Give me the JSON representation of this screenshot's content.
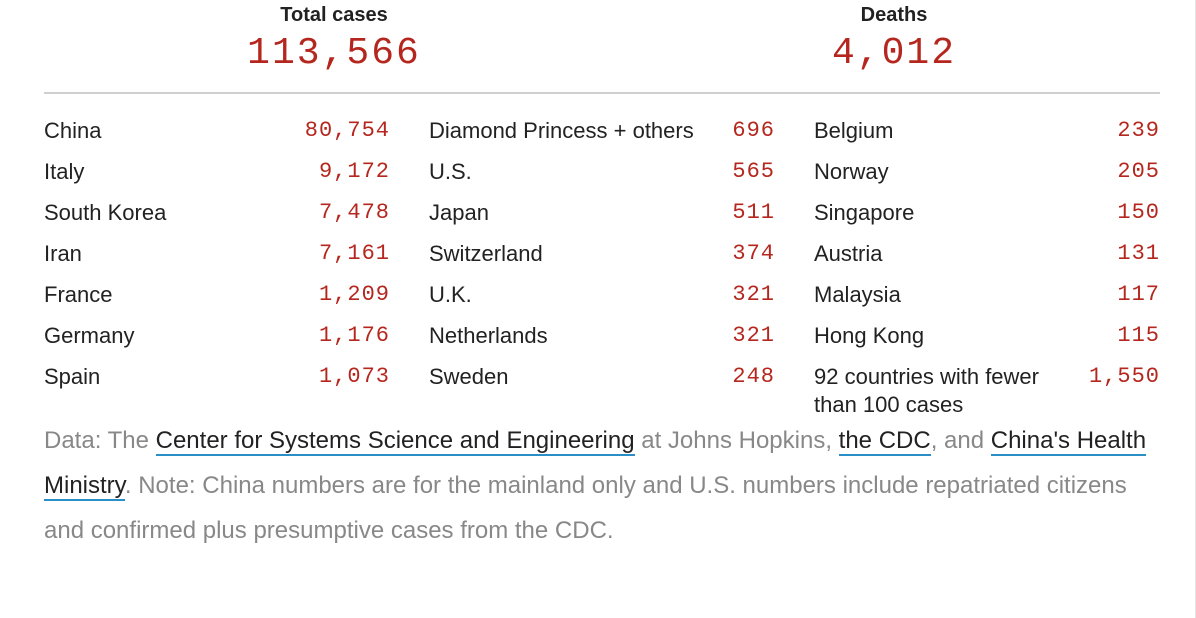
{
  "summary": {
    "cases_label": "Total cases",
    "cases_value": "113,566",
    "deaths_label": "Deaths",
    "deaths_value": "4,012"
  },
  "columns": [
    [
      {
        "name": "China",
        "value": "80,754"
      },
      {
        "name": "Italy",
        "value": "9,172"
      },
      {
        "name": "South Korea",
        "value": "7,478"
      },
      {
        "name": "Iran",
        "value": "7,161"
      },
      {
        "name": "France",
        "value": "1,209"
      },
      {
        "name": "Germany",
        "value": "1,176"
      },
      {
        "name": "Spain",
        "value": "1,073"
      }
    ],
    [
      {
        "name": "Diamond Princess + others",
        "value": "696"
      },
      {
        "name": "U.S.",
        "value": "565"
      },
      {
        "name": "Japan",
        "value": "511"
      },
      {
        "name": "Switzerland",
        "value": "374"
      },
      {
        "name": "U.K.",
        "value": "321"
      },
      {
        "name": "Netherlands",
        "value": "321"
      },
      {
        "name": "Sweden",
        "value": "248"
      }
    ],
    [
      {
        "name": "Belgium",
        "value": "239"
      },
      {
        "name": "Norway",
        "value": "205"
      },
      {
        "name": "Singapore",
        "value": "150"
      },
      {
        "name": "Austria",
        "value": "131"
      },
      {
        "name": "Malaysia",
        "value": "117"
      },
      {
        "name": "Hong Kong",
        "value": "115"
      },
      {
        "name": "92 countries with fewer than 100 cases",
        "value": "1,550"
      }
    ]
  ],
  "footnote": {
    "prefix": "Data: The ",
    "link1": "Center for Systems Science and Engineering",
    "mid1": " at Johns Hopkins, ",
    "link2": "the CDC",
    "mid2": ", and ",
    "link3": "China's Health Ministry",
    "suffix": ". Note: China numbers are for the mainland only and U.S. numbers include repatriated citizens and confirmed plus presumptive cases from the CDC."
  },
  "colors": {
    "accent_red": "#b5271e",
    "link_underline": "#2a8fc7",
    "muted_text": "#888888"
  }
}
